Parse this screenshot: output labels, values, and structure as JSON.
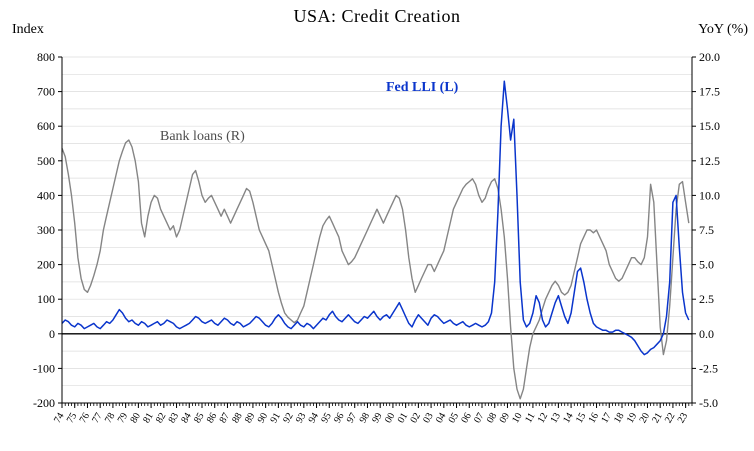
{
  "title": "USA:  Credit Creation",
  "left_axis_title": "Index",
  "right_axis_title": "YoY (%)",
  "annotations": {
    "fed_lli": "Fed LLI (L)",
    "bank_loans": "Bank loans (R)"
  },
  "chart_data": {
    "type": "line",
    "title": "USA:  Credit Creation",
    "legend_position": "inline-annotations",
    "grid": true,
    "x_axis": {
      "start": 1974,
      "step": 0.25,
      "min": 1974,
      "max": 2023.5,
      "tick_years": [
        1974,
        1975,
        1976,
        1977,
        1978,
        1979,
        1980,
        1981,
        1982,
        1983,
        1984,
        1985,
        1986,
        1987,
        1988,
        1989,
        1990,
        1991,
        1992,
        1993,
        1994,
        1995,
        1996,
        1997,
        1998,
        1999,
        2000,
        2001,
        2002,
        2003,
        2004,
        2005,
        2006,
        2007,
        2008,
        2009,
        2010,
        2011,
        2012,
        2013,
        2014,
        2015,
        2016,
        2017,
        2018,
        2019,
        2020,
        2021,
        2022,
        2023
      ],
      "tick_labels": [
        "74",
        "75",
        "76",
        "77",
        "78",
        "79",
        "80",
        "81",
        "82",
        "83",
        "84",
        "85",
        "86",
        "87",
        "88",
        "89",
        "90",
        "91",
        "92",
        "93",
        "94",
        "95",
        "96",
        "97",
        "98",
        "99",
        "00",
        "01",
        "02",
        "03",
        "04",
        "05",
        "06",
        "07",
        "08",
        "09",
        "10",
        "11",
        "12",
        "13",
        "14",
        "15",
        "16",
        "17",
        "18",
        "19",
        "20",
        "21",
        "22",
        "23"
      ]
    },
    "left_axis": {
      "label": "Index",
      "min": -200,
      "max": 800,
      "minor_step": 50,
      "ticks": [
        800,
        700,
        600,
        500,
        400,
        300,
        200,
        100,
        0,
        -100,
        -200
      ],
      "tick_labels": [
        "800",
        "700",
        "600",
        "500",
        "400",
        "300",
        "200",
        "100",
        "0",
        "-100",
        "-200"
      ]
    },
    "right_axis": {
      "label": "YoY (%)",
      "min": -5,
      "max": 20,
      "ticks": [
        20,
        17.5,
        15,
        12.5,
        10,
        7.5,
        5,
        2.5,
        0,
        -2.5,
        -5
      ],
      "tick_labels": [
        "20.0",
        "17.5",
        "15.0",
        "12.5",
        "10.0",
        "7.5",
        "5.0",
        "2.5",
        "0.0",
        "-2.5",
        "-5.0"
      ]
    },
    "series": [
      {
        "name": "Bank loans (R)",
        "axis": "right",
        "color": "#858585",
        "width": 1.4,
        "values": [
          13.4,
          12.8,
          11.5,
          10.0,
          8.0,
          5.5,
          4.0,
          3.2,
          3.0,
          3.5,
          4.2,
          5.0,
          6.0,
          7.5,
          8.5,
          9.5,
          10.5,
          11.5,
          12.5,
          13.2,
          13.8,
          14.0,
          13.5,
          12.5,
          11.0,
          8.0,
          7.0,
          8.5,
          9.5,
          10.0,
          9.8,
          9.0,
          8.5,
          8.0,
          7.5,
          7.8,
          7.0,
          7.5,
          8.5,
          9.5,
          10.5,
          11.5,
          11.8,
          11.0,
          10.0,
          9.5,
          9.8,
          10.0,
          9.5,
          9.0,
          8.5,
          9.0,
          8.5,
          8.0,
          8.5,
          9.0,
          9.5,
          10.0,
          10.5,
          10.3,
          9.5,
          8.5,
          7.5,
          7.0,
          6.5,
          6.0,
          5.0,
          4.0,
          3.0,
          2.2,
          1.5,
          1.2,
          1.0,
          0.8,
          1.0,
          1.5,
          2.0,
          3.0,
          4.0,
          5.0,
          6.0,
          7.0,
          7.8,
          8.2,
          8.5,
          8.0,
          7.5,
          7.0,
          6.0,
          5.5,
          5.0,
          5.2,
          5.5,
          6.0,
          6.5,
          7.0,
          7.5,
          8.0,
          8.5,
          9.0,
          8.5,
          8.0,
          8.5,
          9.0,
          9.5,
          10.0,
          9.8,
          9.0,
          7.5,
          5.5,
          4.0,
          3.0,
          3.5,
          4.0,
          4.5,
          5.0,
          5.0,
          4.5,
          5.0,
          5.5,
          6.0,
          7.0,
          8.0,
          9.0,
          9.5,
          10.0,
          10.5,
          10.8,
          11.0,
          11.2,
          10.8,
          10.0,
          9.5,
          9.8,
          10.5,
          11.0,
          11.2,
          10.5,
          9.0,
          7.0,
          4.0,
          0.5,
          -2.5,
          -4.0,
          -4.7,
          -4.0,
          -2.5,
          -1.0,
          0.0,
          0.5,
          1.0,
          1.8,
          2.5,
          3.0,
          3.5,
          3.8,
          3.5,
          3.0,
          2.8,
          3.0,
          3.5,
          4.5,
          5.5,
          6.5,
          7.0,
          7.5,
          7.5,
          7.3,
          7.5,
          7.0,
          6.5,
          6.0,
          5.0,
          4.5,
          4.0,
          3.8,
          4.0,
          4.5,
          5.0,
          5.5,
          5.5,
          5.2,
          5.0,
          5.5,
          7.0,
          10.8,
          9.5,
          5.0,
          0.5,
          -1.5,
          -0.5,
          2.0,
          5.5,
          9.0,
          10.8,
          11.0,
          9.5,
          8.0
        ]
      },
      {
        "name": "Fed LLI (L)",
        "axis": "left",
        "color": "#0a35cc",
        "width": 1.5,
        "values": [
          30,
          40,
          35,
          25,
          20,
          30,
          25,
          15,
          20,
          25,
          30,
          20,
          15,
          25,
          35,
          30,
          40,
          55,
          70,
          60,
          45,
          35,
          40,
          30,
          25,
          35,
          30,
          20,
          25,
          30,
          35,
          25,
          30,
          40,
          35,
          30,
          20,
          15,
          20,
          25,
          30,
          40,
          50,
          45,
          35,
          30,
          35,
          40,
          30,
          25,
          35,
          45,
          40,
          30,
          25,
          35,
          30,
          20,
          25,
          30,
          40,
          50,
          45,
          35,
          25,
          20,
          30,
          45,
          55,
          45,
          30,
          20,
          15,
          25,
          35,
          25,
          20,
          30,
          25,
          15,
          25,
          35,
          45,
          40,
          55,
          65,
          50,
          40,
          35,
          45,
          55,
          45,
          35,
          30,
          40,
          50,
          45,
          55,
          65,
          50,
          40,
          50,
          55,
          45,
          60,
          75,
          90,
          70,
          50,
          30,
          20,
          40,
          55,
          45,
          35,
          25,
          45,
          55,
          50,
          40,
          30,
          35,
          40,
          30,
          25,
          30,
          35,
          25,
          20,
          25,
          30,
          25,
          20,
          25,
          35,
          60,
          150,
          350,
          600,
          730,
          650,
          560,
          620,
          400,
          150,
          40,
          20,
          30,
          60,
          110,
          90,
          40,
          20,
          30,
          60,
          90,
          110,
          80,
          50,
          30,
          60,
          120,
          180,
          190,
          150,
          100,
          60,
          30,
          20,
          15,
          10,
          10,
          5,
          5,
          10,
          10,
          5,
          0,
          -5,
          -10,
          -20,
          -35,
          -50,
          -60,
          -55,
          -45,
          -40,
          -30,
          -20,
          0,
          50,
          150,
          380,
          400,
          250,
          120,
          60,
          40
        ]
      }
    ]
  }
}
